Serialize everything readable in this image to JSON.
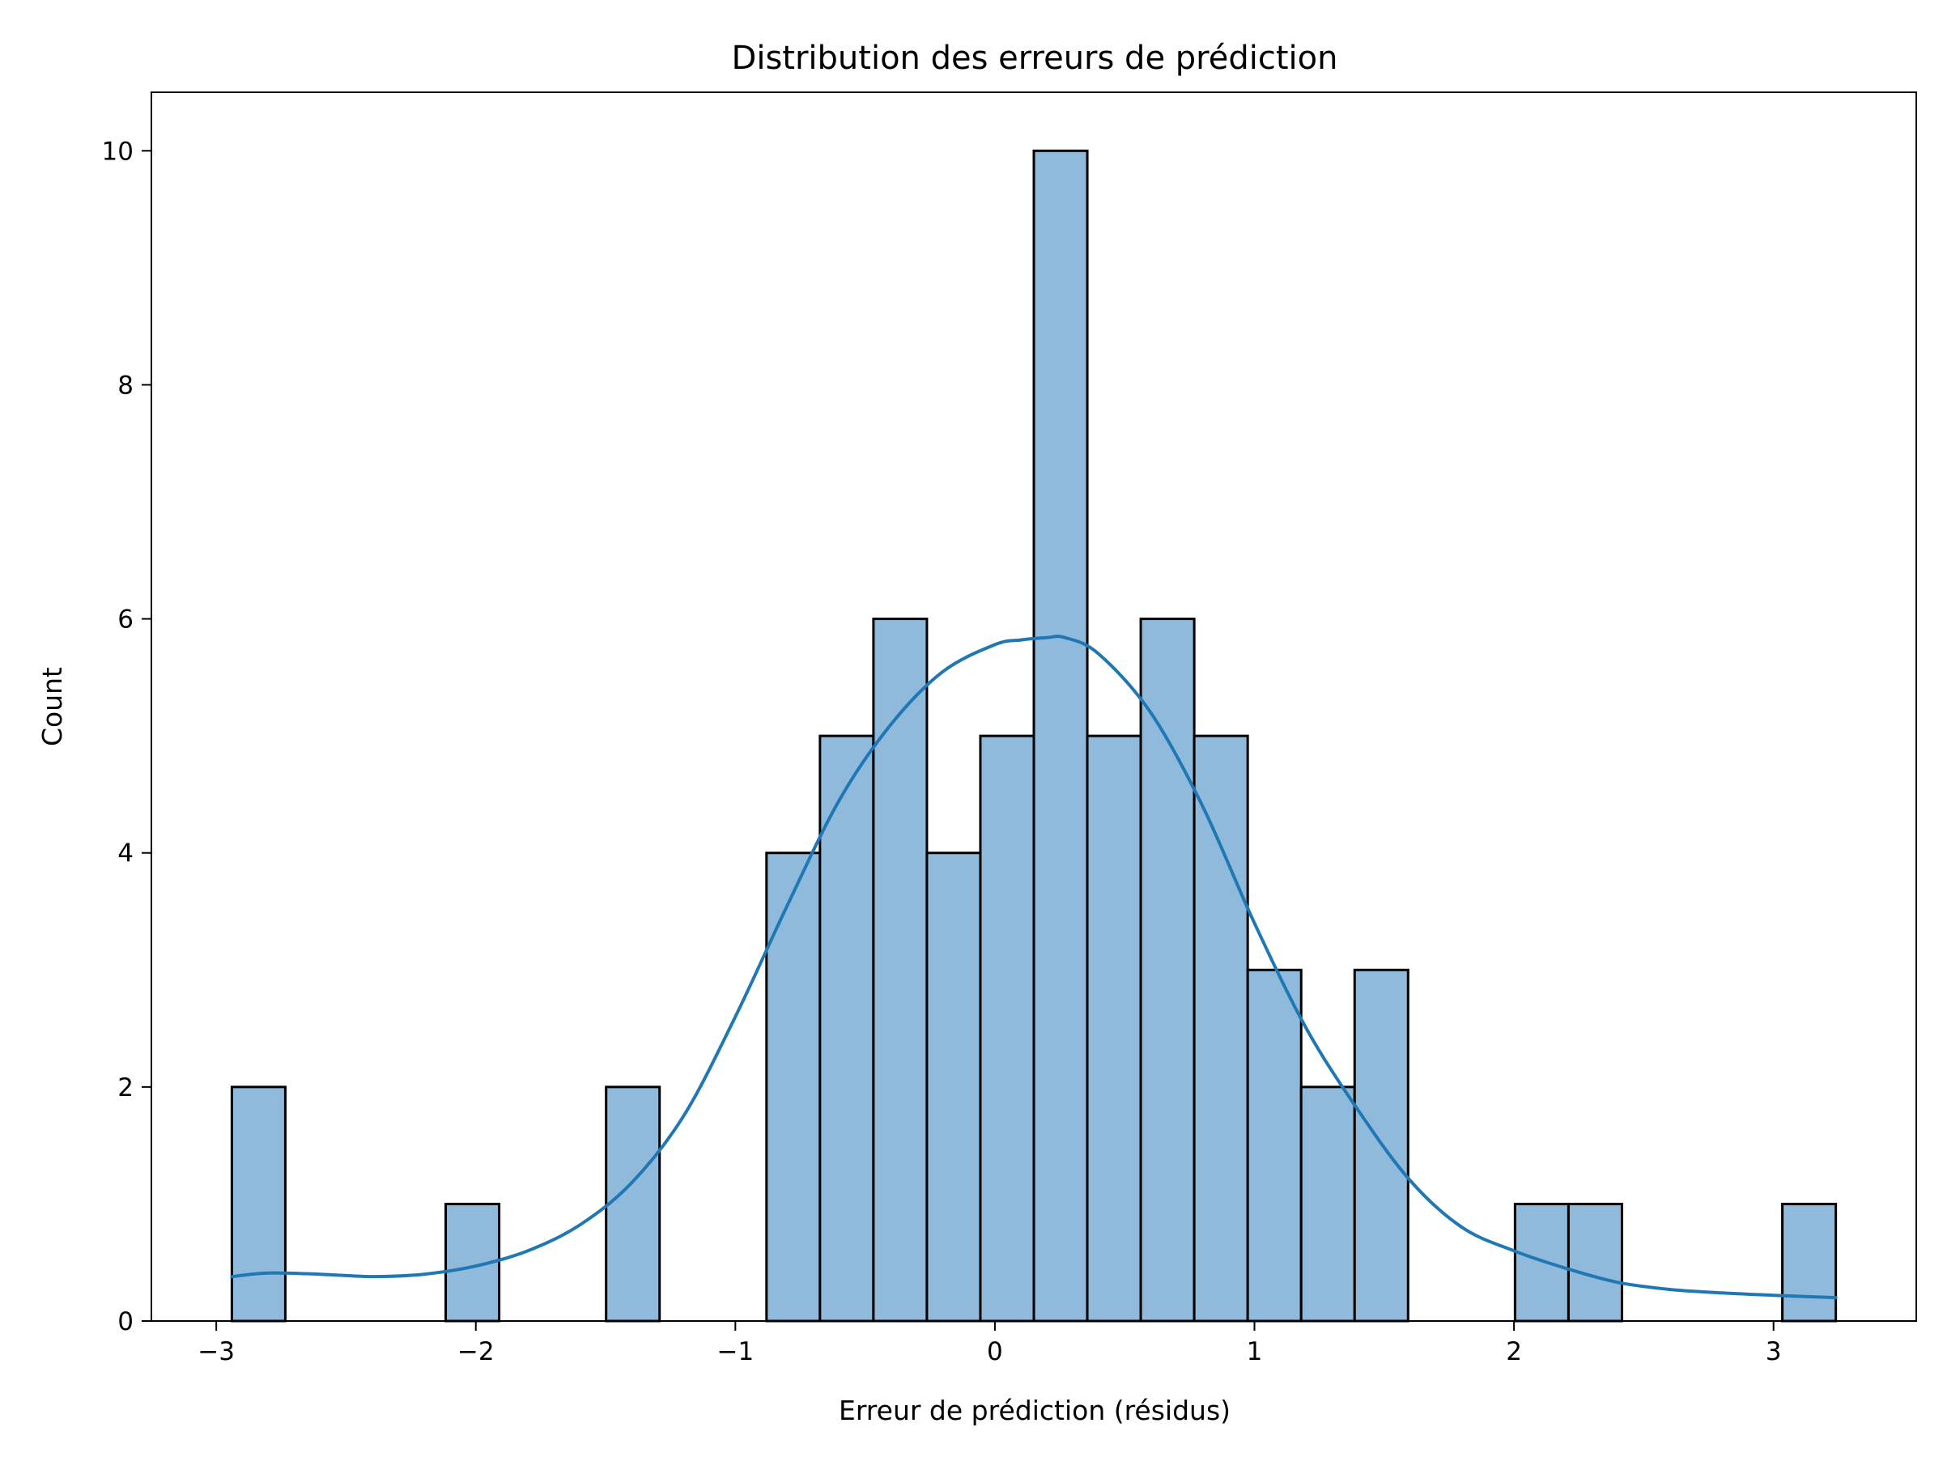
{
  "chart_data": {
    "type": "bar",
    "subtype": "histogram-with-kde",
    "title": "Distribution des erreurs de prédiction",
    "xlabel": "Erreur de prédiction (résidus)",
    "ylabel": "Count",
    "xlim": [
      -3.25,
      3.55
    ],
    "ylim": [
      0,
      10.5
    ],
    "xticks": [
      -3,
      -2,
      -1,
      0,
      1,
      2,
      3
    ],
    "xtick_labels": [
      "−3",
      "−2",
      "−1",
      "0",
      "1",
      "2",
      "3"
    ],
    "yticks": [
      0,
      2,
      4,
      6,
      8,
      10
    ],
    "ytick_labels": [
      "0",
      "2",
      "4",
      "6",
      "8",
      "10"
    ],
    "grid": false,
    "colors": {
      "bar_fill": "#8fbadc",
      "bar_edge": "#000000",
      "kde_line": "#1f77b4"
    },
    "bins": {
      "edges": [
        -2.94,
        -2.734,
        -2.528,
        -2.322,
        -2.116,
        -1.91,
        -1.704,
        -1.498,
        -1.292,
        -1.086,
        -0.88,
        -0.674,
        -0.468,
        -0.262,
        -0.056,
        0.15,
        0.356,
        0.562,
        0.768,
        0.974,
        1.18,
        1.386,
        1.592,
        1.798,
        2.004,
        2.21,
        2.416,
        2.622,
        2.828,
        3.034,
        3.24
      ],
      "counts": [
        2,
        0,
        0,
        0,
        1,
        0,
        0,
        2,
        0,
        0,
        4,
        5,
        6,
        4,
        5,
        10,
        5,
        6,
        5,
        3,
        2,
        3,
        0,
        0,
        1,
        1,
        0,
        0,
        0,
        1
      ]
    },
    "kde": {
      "x": [
        -2.94,
        -2.8,
        -2.6,
        -2.4,
        -2.2,
        -2.0,
        -1.8,
        -1.6,
        -1.4,
        -1.2,
        -1.0,
        -0.8,
        -0.6,
        -0.4,
        -0.2,
        0.0,
        0.1,
        0.2,
        0.27,
        0.4,
        0.6,
        0.8,
        1.0,
        1.2,
        1.4,
        1.6,
        1.8,
        2.0,
        2.2,
        2.4,
        2.6,
        2.8,
        3.0,
        3.24
      ],
      "y": [
        0.38,
        0.41,
        0.4,
        0.38,
        0.4,
        0.47,
        0.6,
        0.82,
        1.18,
        1.75,
        2.6,
        3.55,
        4.45,
        5.1,
        5.55,
        5.78,
        5.82,
        5.84,
        5.84,
        5.7,
        5.2,
        4.4,
        3.4,
        2.5,
        1.8,
        1.2,
        0.8,
        0.6,
        0.45,
        0.33,
        0.27,
        0.24,
        0.22,
        0.2
      ]
    }
  }
}
